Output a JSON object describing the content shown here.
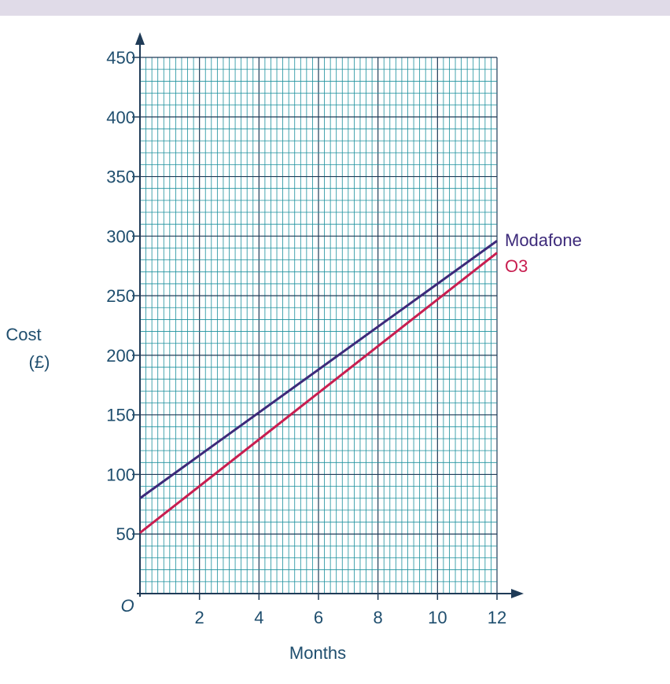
{
  "chart_data": {
    "type": "line",
    "xlabel": "Months",
    "ylabel": [
      "Cost",
      "(£)"
    ],
    "origin_label": "O",
    "xlim": [
      0,
      12
    ],
    "ylim": [
      0,
      450
    ],
    "xticks": [
      2,
      4,
      6,
      8,
      10,
      12
    ],
    "yticks": [
      50,
      100,
      150,
      200,
      250,
      300,
      350,
      400,
      450
    ],
    "grid": true,
    "series": [
      {
        "name": "Modafone",
        "color": "#3d2a7a",
        "x": [
          0,
          12
        ],
        "y": [
          80,
          296
        ]
      },
      {
        "name": "O3",
        "color": "#c81e50",
        "x": [
          0,
          12
        ],
        "y": [
          51,
          286
        ]
      }
    ]
  },
  "colors": {
    "grid": "#1a8f9c",
    "axis": "#1f3b57",
    "text": "#1f4e6e",
    "band": "#e0dbe8"
  }
}
